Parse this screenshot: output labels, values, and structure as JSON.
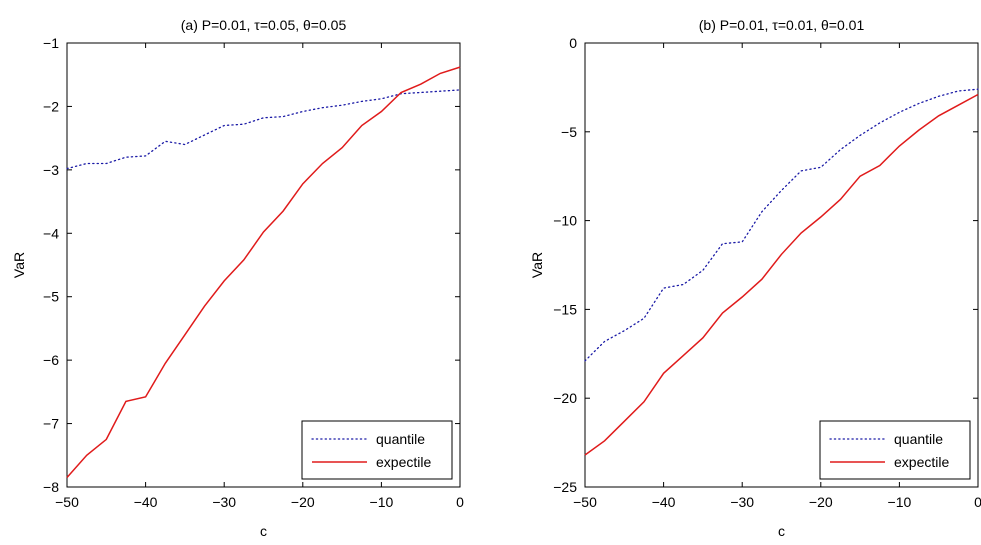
{
  "chart_data": [
    {
      "type": "line",
      "title": "(a) P=0.01, τ=0.05, θ=0.05",
      "xlabel": "c",
      "ylabel": "VaR",
      "xlim": [
        -50,
        0
      ],
      "ylim": [
        -8,
        -1
      ],
      "xticks": [
        -50,
        -40,
        -30,
        -20,
        -10,
        0
      ],
      "yticks": [
        -8,
        -7,
        -6,
        -5,
        -4,
        -3,
        -2,
        -1
      ],
      "xtick_labels": [
        "−50",
        "−40",
        "−30",
        "−20",
        "−10",
        "0"
      ],
      "ytick_labels": [
        "−8",
        "−7",
        "−6",
        "−5",
        "−4",
        "−3",
        "−2",
        "−1"
      ],
      "grid": false,
      "legend_position": "bottom-right",
      "series": [
        {
          "name": "quantile",
          "style": "dotted",
          "color": "#1a1aa6",
          "x": [
            -50,
            -47.5,
            -45,
            -42.5,
            -40,
            -37.5,
            -35,
            -32.5,
            -30,
            -27.5,
            -25,
            -22.5,
            -20,
            -17.5,
            -15,
            -12.5,
            -10,
            -7.5,
            -5,
            -2.5,
            0
          ],
          "y": [
            -2.98,
            -2.9,
            -2.9,
            -2.8,
            -2.78,
            -2.55,
            -2.6,
            -2.45,
            -2.3,
            -2.28,
            -2.18,
            -2.16,
            -2.08,
            -2.02,
            -1.98,
            -1.92,
            -1.88,
            -1.8,
            -1.78,
            -1.76,
            -1.74
          ]
        },
        {
          "name": "expectile",
          "style": "solid",
          "color": "#e01b1b",
          "x": [
            -50,
            -47.5,
            -45,
            -42.5,
            -40,
            -37.5,
            -35,
            -32.5,
            -30,
            -27.5,
            -25,
            -22.5,
            -20,
            -17.5,
            -15,
            -12.5,
            -10,
            -7.5,
            -5,
            -2.5,
            0
          ],
          "y": [
            -7.85,
            -7.5,
            -7.25,
            -6.65,
            -6.58,
            -6.05,
            -5.6,
            -5.15,
            -4.75,
            -4.42,
            -3.98,
            -3.65,
            -3.22,
            -2.9,
            -2.65,
            -2.3,
            -2.08,
            -1.78,
            -1.65,
            -1.48,
            -1.38
          ]
        }
      ]
    },
    {
      "type": "line",
      "title": "(b) P=0.01, τ=0.01, θ=0.01",
      "xlabel": "c",
      "ylabel": "VaR",
      "xlim": [
        -50,
        0
      ],
      "ylim": [
        -25,
        0
      ],
      "xticks": [
        -50,
        -40,
        -30,
        -20,
        -10,
        0
      ],
      "yticks": [
        -25,
        -20,
        -15,
        -10,
        -5,
        0
      ],
      "xtick_labels": [
        "−50",
        "−40",
        "−30",
        "−20",
        "−10",
        "0"
      ],
      "ytick_labels": [
        "−25",
        "−20",
        "−15",
        "−10",
        "−5",
        "0"
      ],
      "grid": false,
      "legend_position": "bottom-right",
      "series": [
        {
          "name": "quantile",
          "style": "dotted",
          "color": "#1a1aa6",
          "x": [
            -50,
            -47.5,
            -45,
            -42.5,
            -40,
            -37.5,
            -35,
            -32.5,
            -30,
            -27.5,
            -25,
            -22.5,
            -20,
            -17.5,
            -15,
            -12.5,
            -10,
            -7.5,
            -5,
            -2.5,
            0
          ],
          "y": [
            -17.9,
            -16.8,
            -16.2,
            -15.5,
            -13.8,
            -13.6,
            -12.8,
            -11.3,
            -11.2,
            -9.5,
            -8.3,
            -7.2,
            -7.0,
            -6.0,
            -5.2,
            -4.5,
            -3.9,
            -3.4,
            -3.0,
            -2.7,
            -2.6
          ]
        },
        {
          "name": "expectile",
          "style": "solid",
          "color": "#e01b1b",
          "x": [
            -50,
            -47.5,
            -45,
            -42.5,
            -40,
            -37.5,
            -35,
            -32.5,
            -30,
            -27.5,
            -25,
            -22.5,
            -20,
            -17.5,
            -15,
            -12.5,
            -10,
            -7.5,
            -5,
            -2.5,
            0
          ],
          "y": [
            -23.2,
            -22.4,
            -21.3,
            -20.2,
            -18.6,
            -17.6,
            -16.6,
            -15.2,
            -14.3,
            -13.3,
            -11.9,
            -10.7,
            -9.8,
            -8.8,
            -7.5,
            -6.9,
            -5.8,
            -4.9,
            -4.1,
            -3.5,
            -2.9
          ]
        }
      ]
    }
  ]
}
